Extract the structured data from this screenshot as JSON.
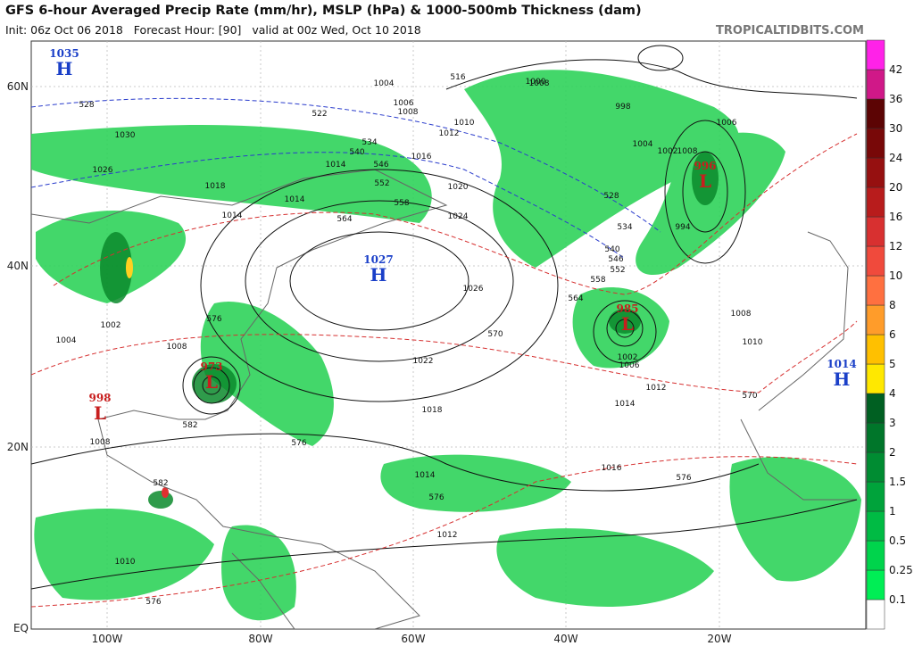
{
  "header": {
    "title": "GFS 6-hour Averaged Precip Rate (mm/hr), MSLP (hPa) & 1000-500mb Thickness (dam)",
    "subtitle": "Init: 06z Oct 06 2018   Forecast Hour: [90]   valid at 00z Wed, Oct 10 2018",
    "site": "TROPICALTIDBITS.COM"
  },
  "axes": {
    "lat_labels": [
      "60N",
      "40N",
      "20N",
      "EQ"
    ],
    "lon_labels": [
      "100W",
      "80W",
      "60W",
      "40W",
      "20W"
    ]
  },
  "colorbar": {
    "labels": [
      "0.1",
      "0.25",
      "0.5",
      "1",
      "1.5",
      "2",
      "3",
      "4",
      "5",
      "6",
      "8",
      "10",
      "12",
      "16",
      "20",
      "24",
      "30",
      "36",
      "42"
    ]
  },
  "centers": [
    {
      "letter": "H",
      "pressure": "1035"
    },
    {
      "letter": "H",
      "pressure": "1027"
    },
    {
      "letter": "L",
      "pressure": "973"
    },
    {
      "letter": "L",
      "pressure": "998"
    },
    {
      "letter": "L",
      "pressure": "996"
    },
    {
      "letter": "L",
      "pressure": "985"
    },
    {
      "letter": "H",
      "pressure": "1014"
    }
  ],
  "isobar_labels": [
    "1004",
    "1006",
    "1008",
    "1010",
    "1012",
    "1016",
    "1020",
    "1024",
    "1026",
    "1022",
    "1018",
    "1014",
    "1016",
    "1014",
    "1012",
    "1014",
    "1008",
    "1010",
    "1012",
    "1014",
    "1002",
    "1000",
    "998",
    "1004",
    "1002",
    "1006",
    "1008",
    "1010",
    "994",
    "1030",
    "1026",
    "1014",
    "1018",
    "1008",
    "1008",
    "1004",
    "1002",
    "1006",
    "1008"
  ],
  "thickness_labels": [
    "528",
    "516",
    "522",
    "534",
    "540",
    "546",
    "552",
    "558",
    "564",
    "570",
    "576",
    "582",
    "528",
    "534",
    "540",
    "546",
    "552",
    "558",
    "564",
    "570",
    "576",
    "576",
    "576",
    "576",
    "582"
  ]
}
